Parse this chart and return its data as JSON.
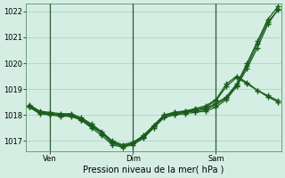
{
  "background_color": "#d4eee4",
  "grid_color": "#aaccbb",
  "line_color": "#1a5c1a",
  "xlabel": "Pression niveau de la mer( hPa )",
  "ylim": [
    1016.6,
    1022.3
  ],
  "yticks": [
    1017,
    1018,
    1019,
    1020,
    1021,
    1022
  ],
  "xtick_labels": [
    "Ven",
    "Dim",
    "Sam"
  ],
  "xtick_positions": [
    2,
    10,
    18
  ],
  "vlines": [
    2,
    10,
    18
  ],
  "n_points": 25,
  "series": [
    [
      1018.3,
      1018.1,
      1018.05,
      1018.0,
      1018.0,
      1017.8,
      1017.5,
      1017.2,
      1016.85,
      1016.75,
      1016.85,
      1017.1,
      1017.5,
      1017.9,
      1018.0,
      1018.05,
      1018.1,
      1018.15,
      1018.3,
      1018.6,
      1019.1,
      1019.8,
      1020.6,
      1021.5,
      1022.1
    ],
    [
      1018.4,
      1018.15,
      1018.1,
      1018.05,
      1018.05,
      1017.9,
      1017.65,
      1017.35,
      1017.0,
      1016.85,
      1016.95,
      1017.2,
      1017.6,
      1018.0,
      1018.1,
      1018.15,
      1018.2,
      1018.25,
      1018.45,
      1018.7,
      1019.2,
      1020.0,
      1020.85,
      1021.7,
      1022.2
    ],
    [
      1018.35,
      1018.1,
      1018.05,
      1018.0,
      1018.0,
      1017.85,
      1017.6,
      1017.3,
      1016.9,
      1016.8,
      1016.9,
      1017.15,
      1017.55,
      1017.95,
      1018.05,
      1018.1,
      1018.15,
      1018.2,
      1018.4,
      1018.65,
      1019.15,
      1019.9,
      1020.75,
      1021.6,
      1022.05
    ],
    [
      1018.3,
      1018.05,
      1018.0,
      1017.95,
      1017.95,
      1017.8,
      1017.55,
      1017.3,
      1016.95,
      1016.8,
      1016.9,
      1017.15,
      1017.55,
      1017.95,
      1018.05,
      1018.1,
      1018.2,
      1018.3,
      1018.55,
      1019.1,
      1019.45,
      1019.2,
      1018.95,
      1018.75,
      1018.55
    ],
    [
      1018.35,
      1018.1,
      1018.05,
      1018.0,
      1018.0,
      1017.85,
      1017.6,
      1017.3,
      1016.95,
      1016.8,
      1016.9,
      1017.2,
      1017.6,
      1018.0,
      1018.1,
      1018.15,
      1018.25,
      1018.35,
      1018.6,
      1019.2,
      1019.5,
      1019.25,
      1018.95,
      1018.7,
      1018.5
    ]
  ]
}
